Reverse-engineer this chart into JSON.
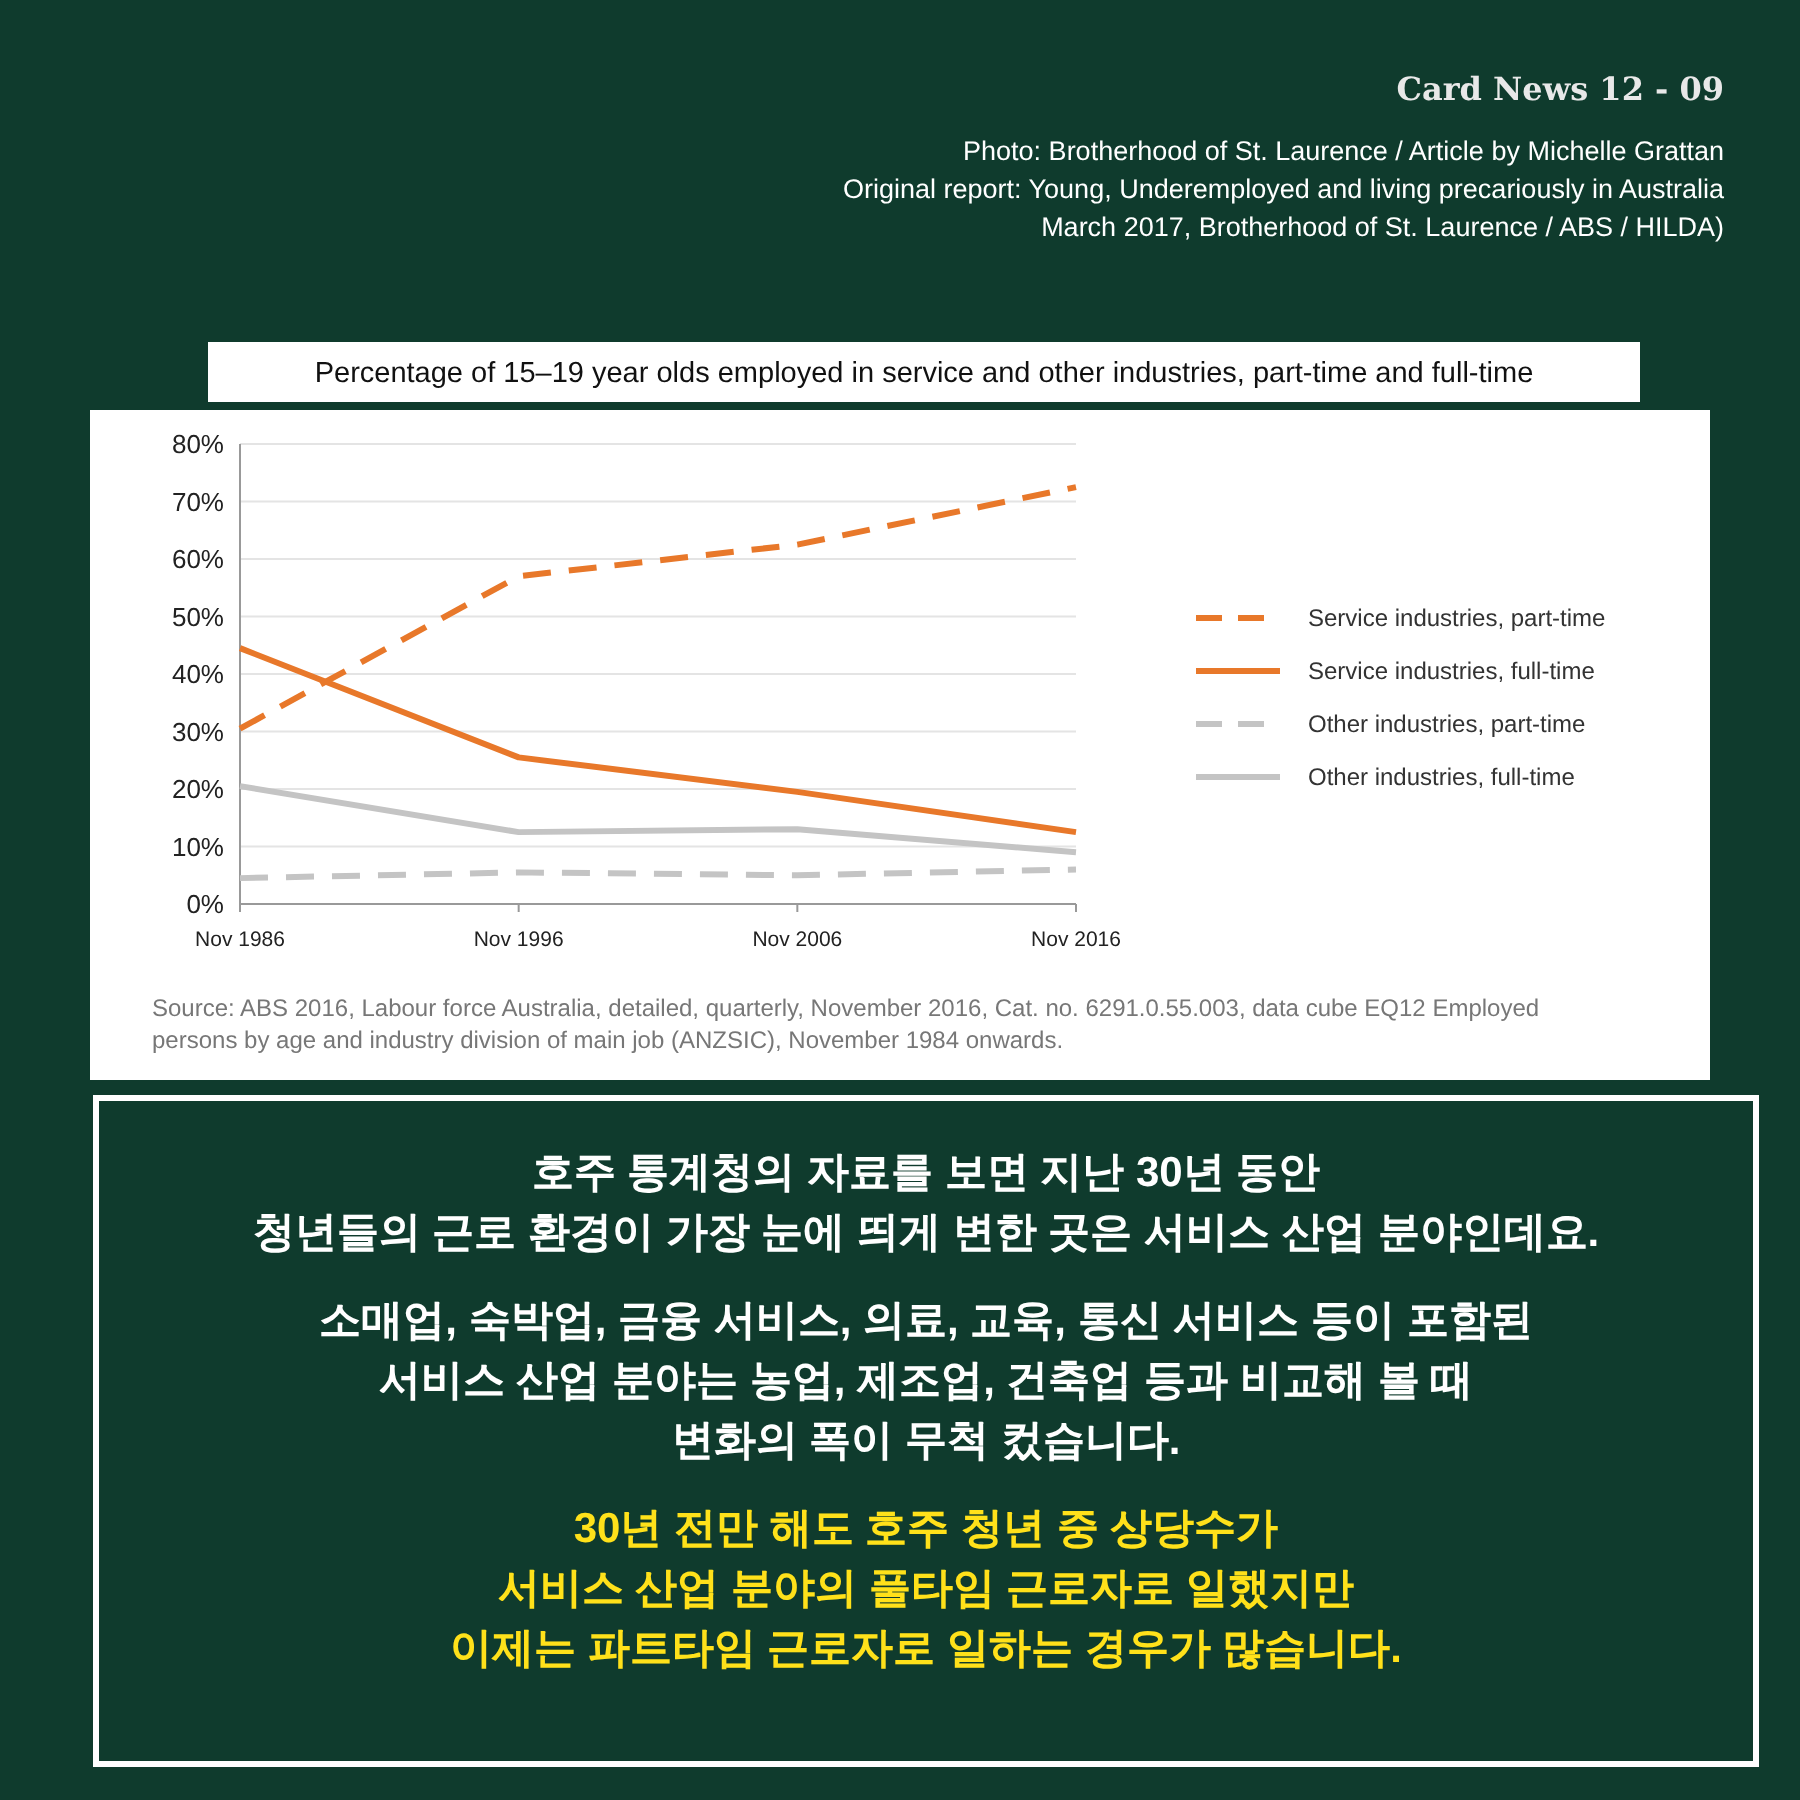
{
  "chart_data": {
    "type": "line",
    "title": "Percentage of 15–19 year olds employed in service and other industries, part-time and full-time",
    "categories": [
      "Nov 1986",
      "Nov 1996",
      "Nov 2006",
      "Nov 2016"
    ],
    "series": [
      {
        "name": "Service industries, part-time",
        "color": "#e8782a",
        "line_style": "dashed",
        "values": [
          30.5,
          57,
          62.5,
          72.5
        ]
      },
      {
        "name": "Service industries, full-time",
        "color": "#e8782a",
        "line_style": "solid",
        "values": [
          44.5,
          25.5,
          19.5,
          12.5
        ]
      },
      {
        "name": "Other industries, part-time",
        "color": "#c4c4c4",
        "line_style": "dashed",
        "values": [
          4.5,
          5.5,
          5,
          6
        ]
      },
      {
        "name": "Other industries, full-time",
        "color": "#c4c4c4",
        "line_style": "solid",
        "values": [
          20.5,
          12.5,
          13,
          9
        ]
      }
    ],
    "ylim": [
      0,
      80
    ],
    "yticks": [
      {
        "value": 0,
        "label": "0%"
      },
      {
        "value": 10,
        "label": "10%"
      },
      {
        "value": 20,
        "label": "20%"
      },
      {
        "value": 30,
        "label": "30%"
      },
      {
        "value": 40,
        "label": "40%"
      },
      {
        "value": 50,
        "label": "50%"
      },
      {
        "value": 60,
        "label": "60%"
      },
      {
        "value": 70,
        "label": "70%"
      },
      {
        "value": 80,
        "label": "80%"
      }
    ],
    "grid": "y",
    "legend": "right",
    "marker": "none",
    "annotations": [
      "Card News 12 - 09",
      "Photo: Brotherhood of St. Laurence / Article by Michelle Grattan",
      "Original report: Young, Underemployed and living precariously in Australia\nMarch 2017, Brotherhood of St. Laurence / ABS / HILDA)",
      "Source: ABS 2016, Labour force Australia, detailed, quarterly, November 2016, Cat. no. 6291.0.55.003, data cube EQ12 Employed\npersons by age and industry division of main job (ANZSIC), November 1984 onwards.",
      "호주 통계청의 자료를 보면 지난 30년 동안\n청년들의 근로 환경이 가장 눈에 띄게 변한 곳은 서비스 산업 분야인데요.",
      "소매업, 숙박업, 금융 서비스, 의료, 교육, 통신 서비스 등이 포함된\n서비스 산업 분야는 농업, 제조업, 건축업 등과 비교해 볼 때\n변화의 폭이 무척 컸습니다.",
      "30년 전만 해도 호주 청년 중 상당수가\n서비스 산업 분야의 풀타임 근로자로 일했지만\n이제는 파트타임 근로자로 일하는 경우가 많습니다."
    ]
  }
}
